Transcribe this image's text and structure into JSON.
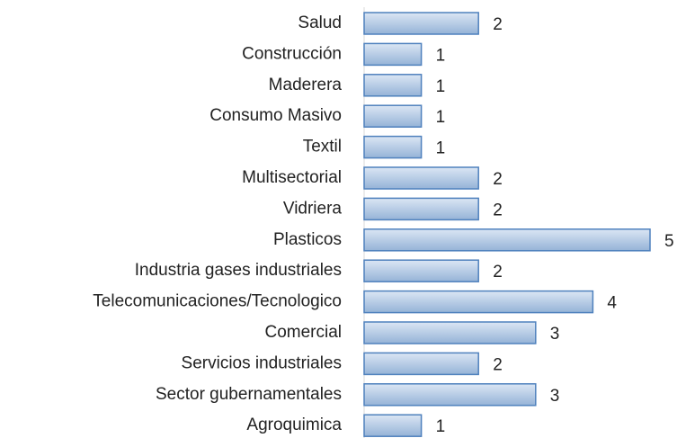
{
  "chart_data": {
    "type": "bar",
    "orientation": "horizontal",
    "categories": [
      "Salud",
      "Construcción",
      "Maderera",
      "Consumo Masivo",
      "Textil",
      "Multisectorial",
      "Vidriera",
      "Plasticos",
      "Industria gases industriales",
      "Telecomunicaciones/Tecnologico",
      "Comercial",
      "Servicios industriales",
      "Sector gubernamentales",
      "Agroquimica"
    ],
    "values": [
      2,
      1,
      1,
      1,
      1,
      2,
      2,
      5,
      2,
      4,
      3,
      2,
      3,
      1
    ],
    "color": "#95b3d7",
    "border_color": "#4f81bd",
    "data_labels": true
  }
}
